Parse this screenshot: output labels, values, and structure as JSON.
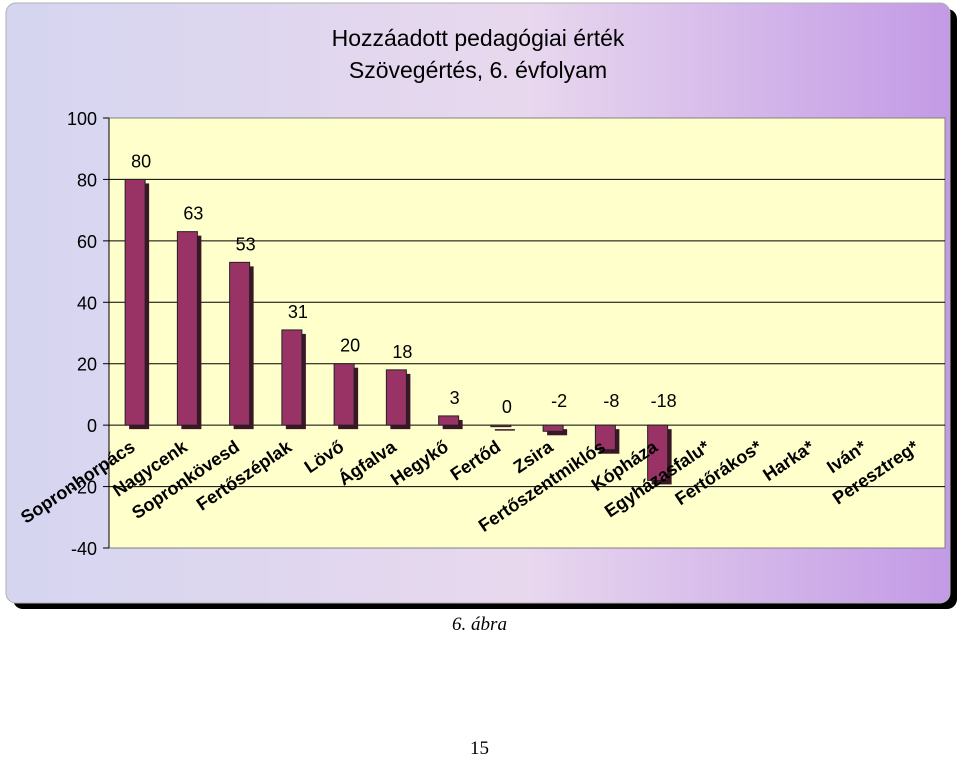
{
  "chart_data": {
    "type": "bar",
    "title": "Hozzáadott pedagógiai érték",
    "subtitle": "Szövegértés, 6. évfolyam",
    "xlabel": "",
    "ylabel": "",
    "categories": [
      "Sopronhorpács",
      "Nagycenk",
      "Sopronkövesd",
      "Fertőszéplak",
      "Lövő",
      "Ágfalva",
      "Hegykő",
      "Fertőd",
      "Zsira",
      "Fertőszentmiklós",
      "Kópháza",
      "Egyházasfalu*",
      "Fertőrákos*",
      "Harka*",
      "Iván*",
      "Peresztreg*"
    ],
    "values": [
      80,
      63,
      53,
      31,
      20,
      18,
      3,
      0,
      -2,
      -8,
      -18,
      null,
      null,
      null,
      null,
      null
    ],
    "data_labels": [
      "80",
      "63",
      "53",
      "31",
      "20",
      "18",
      "3",
      "0",
      "-2",
      "-8",
      "-18",
      "",
      "",
      "",
      "",
      ""
    ],
    "ylim": [
      -40,
      100
    ],
    "yticks": [
      "100",
      "80",
      "60",
      "40",
      "20",
      "0",
      "-20",
      "-40"
    ],
    "grid": true,
    "legend": "none",
    "colors": {
      "bar": "#993366",
      "bar_shadow": "#3b1626",
      "plot_bg": "#ffffcc",
      "bg_left": "#d5d5f0",
      "bg_right": "#c39ae6",
      "gridline": "#000000"
    }
  },
  "figure_caption": "6. ábra",
  "page_number": "15"
}
